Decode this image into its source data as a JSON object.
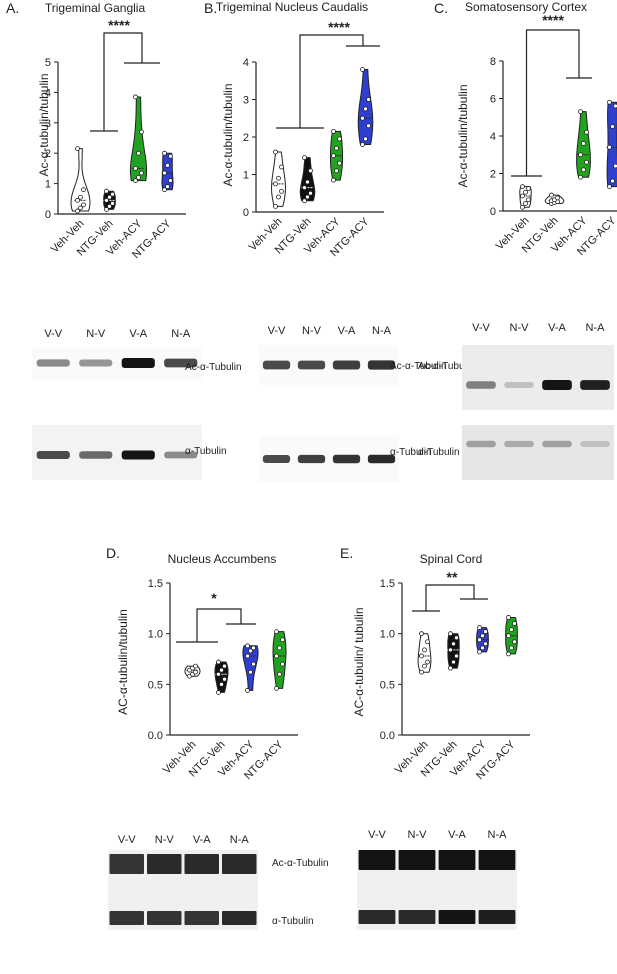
{
  "chart_data": [
    {
      "type": "violin",
      "panel": "A.",
      "title": "Trigeminal Ganglia",
      "ylabel": "Ac-α-tubulin/tubulin",
      "ylim": [
        0,
        5
      ],
      "yticks": [
        "0",
        "1",
        "2",
        "3",
        "4",
        "5"
      ],
      "categories": [
        "Veh-Veh",
        "NTG-Veh",
        "Veh-ACY",
        "NTG-ACY"
      ],
      "colors": [
        "#ffffff",
        "#111111",
        "#22a31f",
        "#2f3fd0"
      ],
      "series": [
        {
          "values": [
            0.1,
            0.2,
            0.3,
            0.45,
            0.55,
            0.8,
            2.15
          ]
        },
        {
          "values": [
            0.15,
            0.25,
            0.35,
            0.45,
            0.55,
            0.65,
            0.75
          ]
        },
        {
          "values": [
            1.1,
            1.2,
            1.35,
            1.5,
            2.0,
            2.7,
            3.85
          ]
        },
        {
          "values": [
            0.8,
            0.9,
            1.1,
            1.35,
            1.6,
            1.9,
            2.0
          ]
        }
      ],
      "significance": "****"
    },
    {
      "type": "violin",
      "panel": "B.",
      "title": "Trigeminal Nucleus Caudalis",
      "ylabel": "Ac-α-tubulin/tubulin",
      "ylim": [
        0,
        4
      ],
      "yticks": [
        "0",
        "1",
        "2",
        "3",
        "4"
      ],
      "categories": [
        "Veh-Veh",
        "NTG-Veh",
        "Veh-ACY",
        "NTG-ACY"
      ],
      "colors": [
        "#ffffff",
        "#111111",
        "#22a31f",
        "#2f3fd0"
      ],
      "series": [
        {
          "values": [
            0.15,
            0.4,
            0.55,
            0.75,
            0.9,
            1.2,
            1.6
          ]
        },
        {
          "values": [
            0.3,
            0.4,
            0.5,
            0.65,
            0.8,
            1.1,
            1.45
          ]
        },
        {
          "values": [
            0.85,
            1.1,
            1.3,
            1.5,
            1.7,
            1.95,
            2.15
          ]
        },
        {
          "values": [
            1.8,
            1.95,
            2.3,
            2.5,
            2.75,
            3.0,
            3.8
          ]
        }
      ],
      "significance": "****"
    },
    {
      "type": "violin",
      "panel": "C.",
      "title": "Somatosensory Cortex",
      "ylabel": "Ac-α-tubulin/tubulin",
      "ylim": [
        0,
        8
      ],
      "yticks": [
        "0",
        "2",
        "4",
        "6",
        "8"
      ],
      "categories": [
        "Veh-Veh",
        "NTG-Veh",
        "Veh-ACY",
        "NTG-ACY"
      ],
      "colors": [
        "#ffffff",
        "#ffffff",
        "#22a31f",
        "#2f3fd0"
      ],
      "series": [
        {
          "values": [
            0.2,
            0.4,
            0.6,
            0.8,
            1.0,
            1.2,
            1.3
          ]
        },
        {
          "values": [
            0.4,
            0.45,
            0.5,
            0.55,
            0.6,
            0.7,
            0.85
          ]
        },
        {
          "values": [
            1.8,
            2.2,
            2.6,
            3.0,
            3.6,
            4.2,
            5.3
          ]
        },
        {
          "values": [
            1.3,
            1.6,
            2.4,
            3.4,
            4.5,
            5.6,
            5.8
          ]
        }
      ],
      "significance": "****"
    },
    {
      "type": "violin",
      "panel": "D.",
      "title": "Nucleus Accumbens",
      "ylabel": "AC-α-tubulin/tubulin",
      "ylim": [
        0,
        1.5
      ],
      "yticks": [
        "0.0",
        "0.5",
        "1.0",
        "1.5"
      ],
      "categories": [
        "Veh-Veh",
        "NTG-Veh",
        "Veh-ACY",
        "NTG-ACY"
      ],
      "colors": [
        "#ffffff",
        "#111111",
        "#2f3fd0",
        "#22a31f"
      ],
      "series": [
        {
          "values": [
            0.58,
            0.6,
            0.62,
            0.64,
            0.66,
            0.68
          ]
        },
        {
          "values": [
            0.42,
            0.5,
            0.55,
            0.6,
            0.64,
            0.68,
            0.72
          ]
        },
        {
          "values": [
            0.44,
            0.62,
            0.7,
            0.78,
            0.83,
            0.86,
            0.88
          ]
        },
        {
          "values": [
            0.46,
            0.6,
            0.7,
            0.78,
            0.86,
            0.94,
            1.02
          ]
        }
      ],
      "significance": "*"
    },
    {
      "type": "violin",
      "panel": "E.",
      "title": "Spinal Cord",
      "ylabel": "AC-α-tubulin/ tubulin",
      "ylim": [
        0,
        1.5
      ],
      "yticks": [
        "0.0",
        "0.5",
        "1.0",
        "1.5"
      ],
      "categories": [
        "Veh-Veh",
        "NTG-Veh",
        "Veh-ACY",
        "NTG-ACY"
      ],
      "colors": [
        "#ffffff",
        "#111111",
        "#2f3fd0",
        "#22a31f"
      ],
      "series": [
        {
          "values": [
            0.62,
            0.68,
            0.72,
            0.78,
            0.84,
            0.92,
            1.0
          ]
        },
        {
          "values": [
            0.66,
            0.72,
            0.78,
            0.84,
            0.9,
            0.96,
            1.0
          ]
        },
        {
          "values": [
            0.82,
            0.86,
            0.9,
            0.94,
            0.98,
            1.02,
            1.06
          ]
        },
        {
          "values": [
            0.8,
            0.86,
            0.92,
            0.98,
            1.04,
            1.1,
            1.16
          ]
        }
      ],
      "significance": "**"
    }
  ],
  "blots": [
    {
      "lanes": [
        "V-V",
        "N-V",
        "V-A",
        "N-A"
      ],
      "top_label": "Ac-α-Tubulin",
      "bottom_label": "α-Tubulin",
      "top_intensity": [
        0.45,
        0.4,
        1.0,
        0.75
      ],
      "bottom_intensity": [
        0.75,
        0.6,
        1.0,
        0.45
      ]
    },
    {
      "lanes": [
        "V-V",
        "N-V",
        "V-A",
        "N-A"
      ],
      "top_label": "Ac-α-Tubulin",
      "bottom_label": "α-Tubulin",
      "top_intensity": [
        0.75,
        0.75,
        0.8,
        0.85
      ],
      "bottom_intensity": [
        0.75,
        0.8,
        0.85,
        0.9
      ]
    },
    {
      "lanes": [
        "V-V",
        "N-V",
        "V-A",
        "N-A"
      ],
      "top_label": "Ac-α-Tubulin",
      "bottom_label": "α-Tubulin",
      "top_intensity": [
        0.5,
        0.2,
        1.0,
        0.95
      ],
      "bottom_intensity": [
        0.35,
        0.3,
        0.35,
        0.2
      ]
    },
    {
      "lanes": [
        "V-V",
        "N-V",
        "V-A",
        "N-A"
      ],
      "top_label": "Ac-α-Tubulin",
      "bottom_label": "α-Tubulin",
      "top_intensity": [
        0.85,
        0.9,
        0.9,
        0.9
      ],
      "bottom_intensity": [
        0.85,
        0.85,
        0.85,
        0.9
      ]
    },
    {
      "lanes": [
        "V-V",
        "N-V",
        "V-A",
        "N-A"
      ],
      "top_label": "",
      "bottom_label": "",
      "top_intensity": [
        1.0,
        1.0,
        1.0,
        1.0
      ],
      "bottom_intensity": [
        0.9,
        0.9,
        1.0,
        0.95
      ]
    }
  ],
  "colors": {
    "significance": "#c8283a",
    "axis": "#222222"
  }
}
